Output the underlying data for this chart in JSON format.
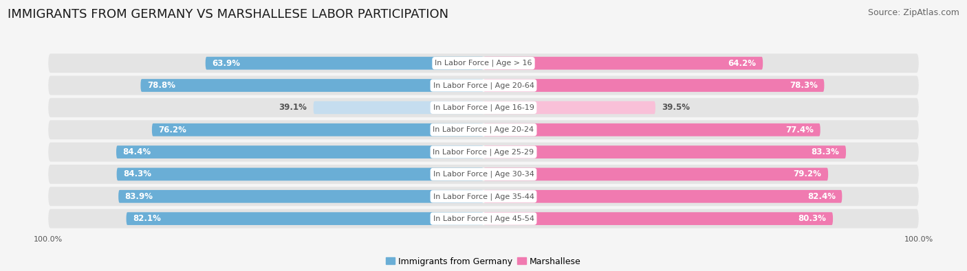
{
  "title": "IMMIGRANTS FROM GERMANY VS MARSHALLESE LABOR PARTICIPATION",
  "source": "Source: ZipAtlas.com",
  "categories": [
    "In Labor Force | Age > 16",
    "In Labor Force | Age 20-64",
    "In Labor Force | Age 16-19",
    "In Labor Force | Age 20-24",
    "In Labor Force | Age 25-29",
    "In Labor Force | Age 30-34",
    "In Labor Force | Age 35-44",
    "In Labor Force | Age 45-54"
  ],
  "germany_values": [
    63.9,
    78.8,
    39.1,
    76.2,
    84.4,
    84.3,
    83.9,
    82.1
  ],
  "marshallese_values": [
    64.2,
    78.3,
    39.5,
    77.4,
    83.3,
    79.2,
    82.4,
    80.3
  ],
  "germany_color": "#6aaed6",
  "germany_color_light": "#c5ddef",
  "marshallese_color": "#f07ab0",
  "marshallese_color_light": "#f9c0d8",
  "row_color_odd": "#e8e8e8",
  "row_color_even": "#f0f0f0",
  "background_color": "#f5f5f5",
  "label_color_white": "#ffffff",
  "label_color_dark": "#555555",
  "max_val": 100.0,
  "bar_height": 0.58,
  "title_fontsize": 13,
  "source_fontsize": 9,
  "value_fontsize": 8.5,
  "cat_fontsize": 8,
  "legend_fontsize": 9,
  "axis_label_fontsize": 8
}
